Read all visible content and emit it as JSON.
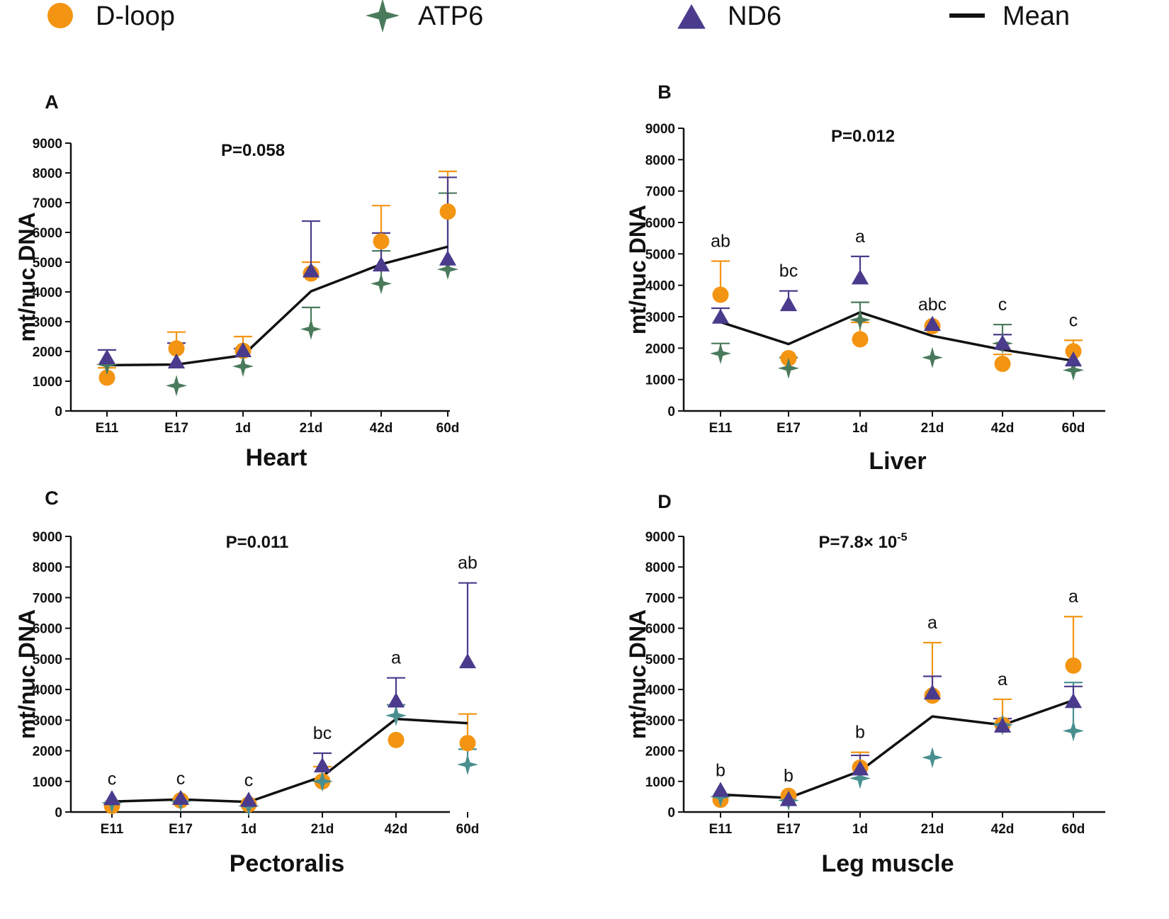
{
  "colors": {
    "dloop": "#f39512",
    "atp6": "#4a7a5c",
    "atp6_alt": "#4a8f8f",
    "nd6": "#4b3b8c",
    "mean": "#111111",
    "axis": "#111111"
  },
  "legend": [
    {
      "key": "dloop",
      "label": "D-loop",
      "marker": "circle"
    },
    {
      "key": "atp6",
      "label": "ATP6",
      "marker": "star4"
    },
    {
      "key": "nd6",
      "label": "ND6",
      "marker": "triangle"
    },
    {
      "key": "mean",
      "label": "Mean",
      "marker": "line"
    }
  ],
  "chart_data": [
    {
      "type": "scatter",
      "panel": "A",
      "title": "P=0.058",
      "xlabel": "Heart",
      "ylabel": "mt/nuc DNA",
      "categories": [
        "E11",
        "E17",
        "1d",
        "21d",
        "42d",
        "60d"
      ],
      "ylim": [
        0,
        9000
      ],
      "yticks": [
        0,
        1000,
        2000,
        3000,
        4000,
        5000,
        6000,
        7000,
        8000,
        9000
      ],
      "significance": [
        "",
        "",
        "",
        "",
        "",
        ""
      ],
      "atp6_color_key": "atp6",
      "series": [
        {
          "name": "D-loop",
          "key": "dloop",
          "values": [
            1120,
            2100,
            2020,
            4620,
            5700,
            6700
          ],
          "errors": [
            1450,
            2650,
            2500,
            5000,
            6900,
            8050
          ]
        },
        {
          "name": "ATP6",
          "key": "atp6",
          "values": [
            1560,
            850,
            1500,
            2750,
            4280,
            4760
          ],
          "errors": [
            1560,
            850,
            1500,
            3480,
            5380,
            7320
          ]
        },
        {
          "name": "ND6",
          "key": "nd6",
          "values": [
            1780,
            1640,
            2020,
            4700,
            4900,
            5100
          ],
          "errors": [
            2050,
            2280,
            2100,
            6380,
            5980,
            7850
          ]
        },
        {
          "name": "Mean",
          "key": "mean",
          "values": [
            1540,
            1560,
            1870,
            4020,
            4930,
            5520
          ]
        }
      ]
    },
    {
      "type": "scatter",
      "panel": "B",
      "title": "P=0.012",
      "xlabel": "Liver",
      "ylabel": "mt/nuc DNA",
      "categories": [
        "E11",
        "E17",
        "1d",
        "21d",
        "42d",
        "60d"
      ],
      "ylim": [
        0,
        9000
      ],
      "yticks": [
        0,
        1000,
        2000,
        3000,
        4000,
        5000,
        6000,
        7000,
        8000,
        9000
      ],
      "significance": [
        "ab",
        "bc",
        "a",
        "abc",
        "c",
        "c"
      ],
      "atp6_color_key": "atp6",
      "series": [
        {
          "name": "D-loop",
          "key": "dloop",
          "values": [
            3700,
            1680,
            2280,
            2700,
            1500,
            1900
          ],
          "errors": [
            4770,
            1680,
            2820,
            2700,
            1800,
            2250
          ]
        },
        {
          "name": "ATP6",
          "key": "atp6",
          "values": [
            1830,
            1360,
            2900,
            1700,
            2150,
            1300
          ],
          "errors": [
            2150,
            1700,
            3460,
            1700,
            2750,
            1300
          ]
        },
        {
          "name": "ND6",
          "key": "nd6",
          "values": [
            2980,
            3380,
            4230,
            2750,
            2150,
            1620
          ],
          "errors": [
            3270,
            3820,
            4920,
            2750,
            2430,
            1620
          ]
        },
        {
          "name": "Mean",
          "key": "mean",
          "values": [
            2830,
            2130,
            3140,
            2390,
            1950,
            1600
          ]
        }
      ]
    },
    {
      "type": "scatter",
      "panel": "C",
      "title": "P=0.011",
      "xlabel": "Pectoralis",
      "ylabel": "mt/nuc DNA",
      "categories": [
        "E11",
        "E17",
        "1d",
        "21d",
        "42d",
        "60d"
      ],
      "ylim": [
        0,
        9000
      ],
      "yticks": [
        0,
        1000,
        2000,
        3000,
        4000,
        5000,
        6000,
        7000,
        8000,
        9000
      ],
      "significance": [
        "c",
        "c",
        "c",
        "bc",
        "a",
        "ab"
      ],
      "atp6_color_key": "atp6_alt",
      "series": [
        {
          "name": "D-loop",
          "key": "dloop",
          "values": [
            200,
            380,
            250,
            1000,
            2350,
            2250
          ],
          "errors": [
            200,
            380,
            250,
            1480,
            2350,
            3200
          ]
        },
        {
          "name": "ATP6",
          "key": "atp6",
          "values": [
            300,
            350,
            200,
            1000,
            3150,
            1550
          ],
          "errors": [
            300,
            350,
            200,
            1000,
            3500,
            2050
          ]
        },
        {
          "name": "ND6",
          "key": "nd6",
          "values": [
            430,
            440,
            380,
            1500,
            3620,
            4900
          ],
          "errors": [
            430,
            440,
            380,
            1920,
            4380,
            7480
          ]
        },
        {
          "name": "Mean",
          "key": "mean",
          "values": [
            340,
            410,
            330,
            1160,
            3040,
            2900
          ]
        }
      ]
    },
    {
      "type": "scatter",
      "panel": "D",
      "title": "P=7.8× 10",
      "title_sup": "-5",
      "xlabel": "Leg muscle",
      "ylabel": "mt/nuc DNA",
      "categories": [
        "E11",
        "E17",
        "1d",
        "21d",
        "42d",
        "60d"
      ],
      "ylim": [
        0,
        9000
      ],
      "yticks": [
        0,
        1000,
        2000,
        3000,
        4000,
        5000,
        6000,
        7000,
        8000,
        9000
      ],
      "significance": [
        "b",
        "b",
        "b",
        "a",
        "a",
        "a"
      ],
      "atp6_color_key": "atp6_alt",
      "series": [
        {
          "name": "D-loop",
          "key": "dloop",
          "values": [
            400,
            530,
            1450,
            3800,
            2850,
            4780
          ],
          "errors": [
            400,
            530,
            1950,
            5530,
            3680,
            6380
          ]
        },
        {
          "name": "ATP6",
          "key": "atp6",
          "values": [
            500,
            380,
            1100,
            1780,
            2850,
            2650
          ],
          "errors": [
            500,
            380,
            1100,
            1780,
            2850,
            4230
          ]
        },
        {
          "name": "ND6",
          "key": "nd6",
          "values": [
            700,
            400,
            1400,
            3880,
            2800,
            3600
          ],
          "errors": [
            700,
            400,
            1850,
            4430,
            3050,
            4100
          ]
        },
        {
          "name": "Mean",
          "key": "mean",
          "values": [
            570,
            460,
            1340,
            3120,
            2840,
            3650
          ]
        }
      ]
    }
  ]
}
